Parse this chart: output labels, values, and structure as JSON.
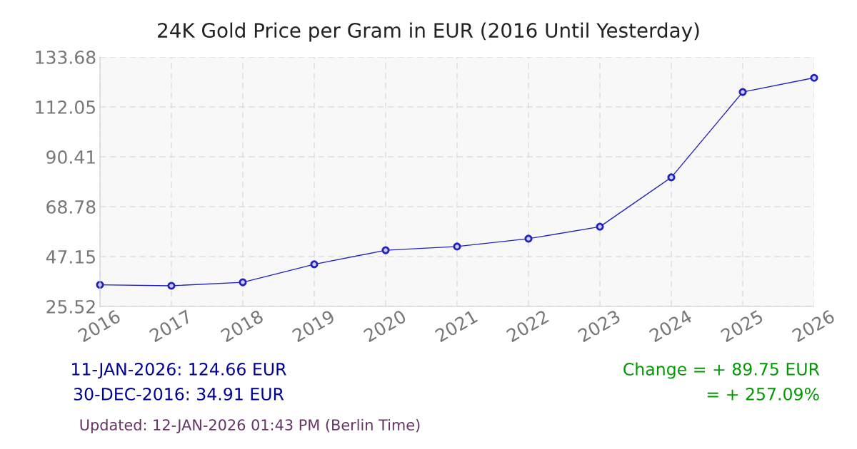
{
  "chart_data": {
    "type": "line",
    "title": "24K Gold Price per Gram in EUR (2016 Until Yesterday)",
    "categories": [
      "2016",
      "2017",
      "2018",
      "2019",
      "2020",
      "2021",
      "2022",
      "2023",
      "2024",
      "2025",
      "2026"
    ],
    "series": [
      {
        "color": "#2222bb",
        "values": [
          34.91,
          34.5,
          36.0,
          43.8,
          49.9,
          51.5,
          54.9,
          60.1,
          81.5,
          118.5,
          124.66
        ]
      }
    ],
    "ylim": [
      25.52,
      133.68
    ],
    "yticks": [
      25.52,
      47.15,
      68.78,
      90.41,
      112.05,
      133.68
    ],
    "grid": true,
    "marker": "circle",
    "line_style": "solid",
    "annotations": [
      "11-JAN-2026: 124.66 EUR",
      "30-DEC-2016: 34.91 EUR",
      "Change = + 89.75 EUR",
      "= + 257.09%",
      "Updated: 12-JAN-2026 01:43 PM (Berlin Time)"
    ]
  }
}
